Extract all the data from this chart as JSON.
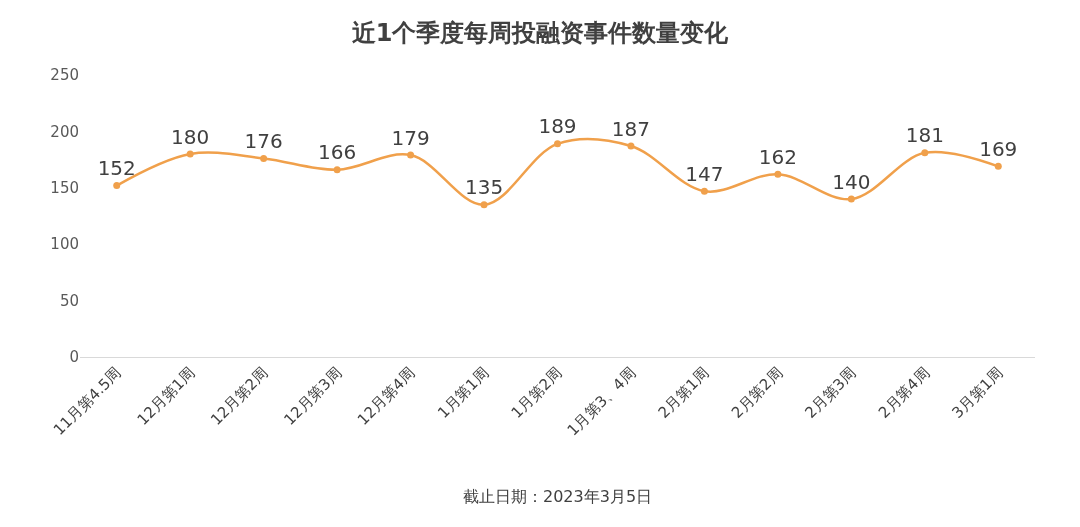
{
  "chart_data": {
    "type": "line",
    "title": "近1个季度每周投融资事件数量变化",
    "categories": [
      "11月第4.5周",
      "12月第1周",
      "12月第2周",
      "12月第3周",
      "12月第4周",
      "1月第1周",
      "1月第2周",
      "1月第3、4周",
      "2月第1周",
      "2月第2周",
      "2月第3周",
      "2月第4周",
      "3月第1周"
    ],
    "series": [
      {
        "color": "#f0a04b",
        "values": [
          152,
          180,
          176,
          166,
          179,
          135,
          189,
          187,
          147,
          162,
          140,
          181,
          169
        ]
      }
    ],
    "ylim": [
      0,
      250
    ],
    "yticks": [
      0,
      50,
      100,
      150,
      200,
      250
    ],
    "marker": "circle",
    "line_style": "solid",
    "data_labels": true,
    "annotations": [
      "截止日期：2023年3月5日"
    ]
  }
}
